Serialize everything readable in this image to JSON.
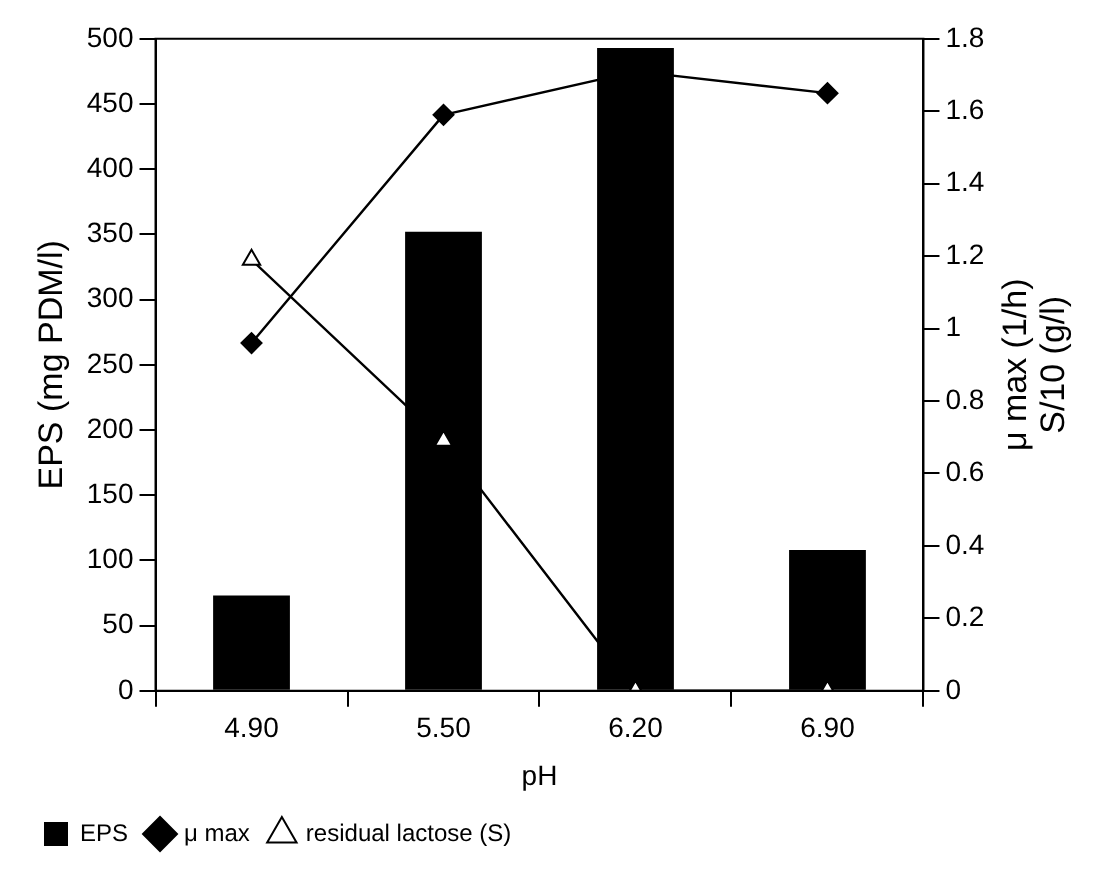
{
  "chart_data": {
    "type": "bar",
    "xlabel": "pH",
    "ylabel": "EPS (mg PDM/l)",
    "y2label": "μ max (1/h)\nS/10 (g/l)",
    "categories": [
      "4.90",
      "5.50",
      "6.20",
      "6.90"
    ],
    "series": [
      {
        "name": "EPS",
        "color": "#000000",
        "values": [
          73,
          352,
          493,
          108
        ]
      },
      {
        "name": "μ max",
        "type": "line",
        "axis": "y2",
        "color": "#000000",
        "marker": "diamond",
        "values": [
          0.96,
          1.59,
          1.71,
          1.65
        ]
      },
      {
        "name": "residual lactose (S)",
        "type": "line",
        "axis": "y2",
        "color": "#000000",
        "marker": "triangle",
        "values": [
          1.19,
          0.69,
          0,
          0
        ]
      }
    ],
    "ylim": [
      0,
      500
    ],
    "yticks": [
      0,
      50,
      100,
      150,
      200,
      250,
      300,
      350,
      400,
      450,
      500
    ],
    "y2lim": [
      0,
      1.8
    ],
    "y2ticks": [
      0,
      0.2,
      0.4,
      0.6,
      0.8,
      1,
      1.2,
      1.4,
      1.6,
      1.8
    ],
    "grid": false,
    "legend": "bottom left",
    "line_style": "solid"
  }
}
